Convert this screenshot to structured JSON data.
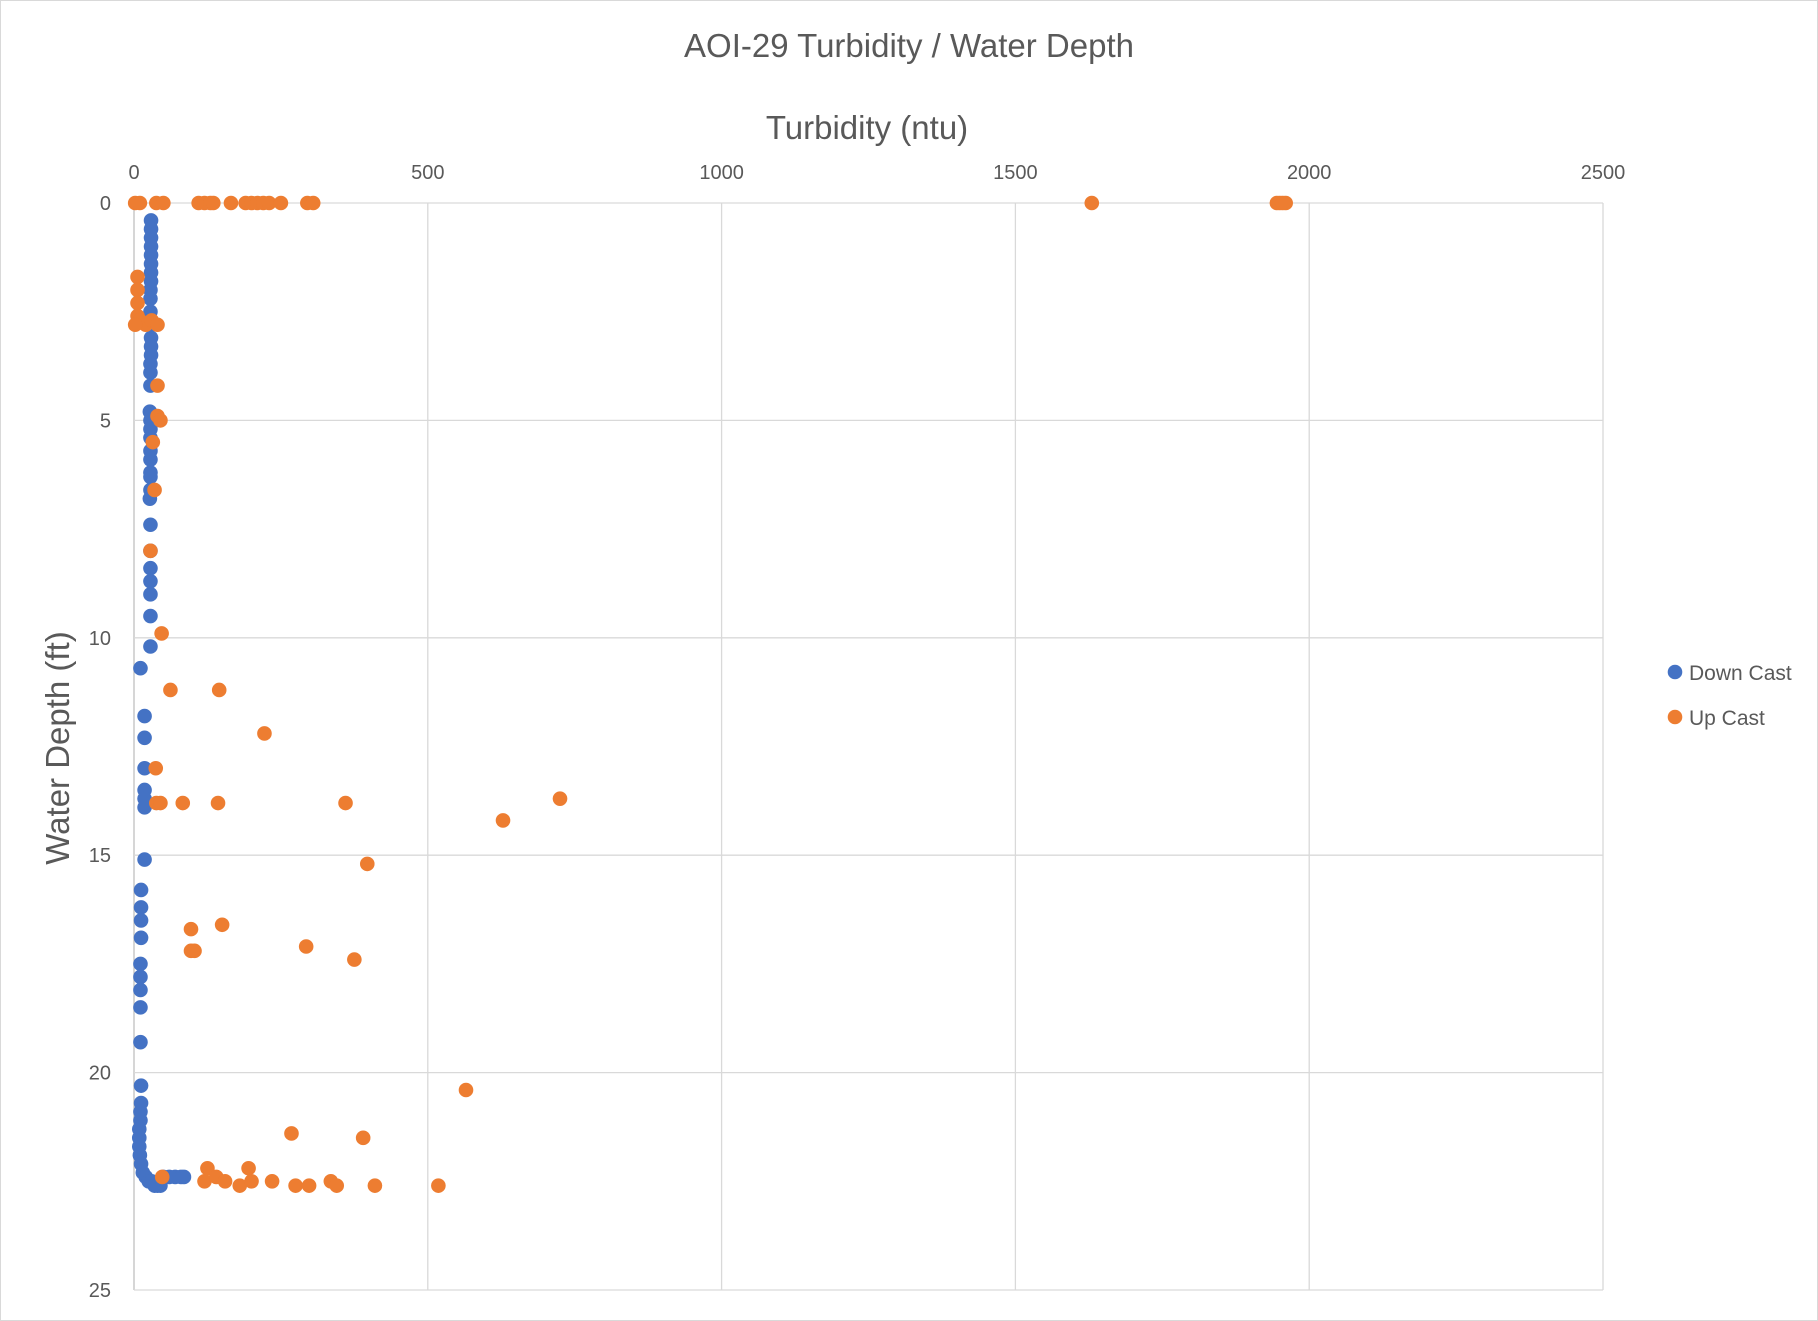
{
  "chart_data": {
    "type": "scatter",
    "title": "AOI-29 Turbidity / Water Depth",
    "xlabel": "Turbidity (ntu)",
    "ylabel": "Water Depth (ft)",
    "xlim": [
      0,
      2500
    ],
    "ylim": [
      0,
      25
    ],
    "y_inverted": true,
    "x_axis_position": "top",
    "x_ticks": [
      "0",
      "500",
      "1000",
      "1500",
      "2000",
      "2500"
    ],
    "y_ticks": [
      "0",
      "5",
      "10",
      "15",
      "20",
      "25"
    ],
    "grid": true,
    "legend_position": "right",
    "series": [
      {
        "name": "Down Cast",
        "color": "#4472C4",
        "points": [
          [
            29,
            0.4
          ],
          [
            29,
            0.6
          ],
          [
            29,
            0.8
          ],
          [
            29,
            1.0
          ],
          [
            29,
            1.2
          ],
          [
            29,
            1.4
          ],
          [
            29,
            1.6
          ],
          [
            29,
            1.8
          ],
          [
            28,
            2.0
          ],
          [
            28,
            2.2
          ],
          [
            28,
            2.5
          ],
          [
            28,
            2.8
          ],
          [
            29,
            3.1
          ],
          [
            29,
            3.3
          ],
          [
            29,
            3.5
          ],
          [
            28,
            3.7
          ],
          [
            28,
            3.9
          ],
          [
            28,
            4.2
          ],
          [
            27,
            4.8
          ],
          [
            28,
            5.0
          ],
          [
            28,
            5.2
          ],
          [
            28,
            5.4
          ],
          [
            28,
            5.7
          ],
          [
            28,
            5.9
          ],
          [
            28,
            6.2
          ],
          [
            28,
            6.3
          ],
          [
            28,
            6.6
          ],
          [
            27,
            6.8
          ],
          [
            28,
            7.4
          ],
          [
            28,
            8.0
          ],
          [
            28,
            8.4
          ],
          [
            28,
            8.7
          ],
          [
            28,
            9.0
          ],
          [
            28,
            9.5
          ],
          [
            28,
            10.2
          ],
          [
            11,
            10.7
          ],
          [
            18,
            11.8
          ],
          [
            18,
            12.3
          ],
          [
            18,
            13.0
          ],
          [
            18,
            13.5
          ],
          [
            18,
            13.7
          ],
          [
            18,
            13.9
          ],
          [
            18,
            15.1
          ],
          [
            12,
            15.8
          ],
          [
            12,
            16.2
          ],
          [
            12,
            16.5
          ],
          [
            12,
            16.9
          ],
          [
            11,
            17.5
          ],
          [
            11,
            17.8
          ],
          [
            11,
            18.1
          ],
          [
            11,
            18.5
          ],
          [
            11,
            19.3
          ],
          [
            12,
            20.3
          ],
          [
            12,
            20.7
          ],
          [
            11,
            20.9
          ],
          [
            11,
            21.1
          ],
          [
            9,
            21.3
          ],
          [
            9,
            21.5
          ],
          [
            9,
            21.7
          ],
          [
            10,
            21.9
          ],
          [
            12,
            22.1
          ],
          [
            15,
            22.3
          ],
          [
            20,
            22.4
          ],
          [
            25,
            22.5
          ],
          [
            30,
            22.5
          ],
          [
            35,
            22.6
          ],
          [
            40,
            22.6
          ],
          [
            45,
            22.6
          ],
          [
            50,
            22.4
          ],
          [
            60,
            22.4
          ],
          [
            70,
            22.4
          ],
          [
            80,
            22.4
          ],
          [
            85,
            22.4
          ]
        ]
      },
      {
        "name": "Up Cast",
        "color": "#ED7D31",
        "points": [
          [
            2,
            0
          ],
          [
            10,
            0
          ],
          [
            38,
            0
          ],
          [
            50,
            0
          ],
          [
            110,
            0
          ],
          [
            120,
            0
          ],
          [
            130,
            0
          ],
          [
            135,
            0
          ],
          [
            165,
            0
          ],
          [
            190,
            0
          ],
          [
            200,
            0
          ],
          [
            210,
            0
          ],
          [
            220,
            0
          ],
          [
            230,
            0
          ],
          [
            250,
            0
          ],
          [
            295,
            0
          ],
          [
            305,
            0
          ],
          [
            1630,
            0
          ],
          [
            1945,
            0
          ],
          [
            1950,
            0
          ],
          [
            1955,
            0
          ],
          [
            1960,
            0
          ],
          [
            6,
            1.7
          ],
          [
            6,
            2.0
          ],
          [
            6,
            2.3
          ],
          [
            6,
            2.6
          ],
          [
            10,
            2.7
          ],
          [
            20,
            2.8
          ],
          [
            30,
            2.7
          ],
          [
            40,
            2.8
          ],
          [
            2,
            2.8
          ],
          [
            40,
            4.2
          ],
          [
            40,
            4.9
          ],
          [
            45,
            5.0
          ],
          [
            32,
            5.5
          ],
          [
            35,
            6.6
          ],
          [
            28,
            8.0
          ],
          [
            47,
            9.9
          ],
          [
            62,
            11.2
          ],
          [
            145,
            11.2
          ],
          [
            222,
            12.2
          ],
          [
            37,
            13.0
          ],
          [
            38,
            13.8
          ],
          [
            45,
            13.8
          ],
          [
            83,
            13.8
          ],
          [
            143,
            13.8
          ],
          [
            360,
            13.8
          ],
          [
            725,
            13.7
          ],
          [
            628,
            14.2
          ],
          [
            397,
            15.2
          ],
          [
            97,
            16.7
          ],
          [
            150,
            16.6
          ],
          [
            97,
            17.2
          ],
          [
            103,
            17.2
          ],
          [
            293,
            17.1
          ],
          [
            375,
            17.4
          ],
          [
            565,
            20.4
          ],
          [
            268,
            21.4
          ],
          [
            390,
            21.5
          ],
          [
            125,
            22.2
          ],
          [
            195,
            22.2
          ],
          [
            48,
            22.4
          ],
          [
            120,
            22.5
          ],
          [
            140,
            22.4
          ],
          [
            155,
            22.5
          ],
          [
            180,
            22.6
          ],
          [
            200,
            22.5
          ],
          [
            235,
            22.5
          ],
          [
            275,
            22.6
          ],
          [
            298,
            22.6
          ],
          [
            335,
            22.5
          ],
          [
            345,
            22.6
          ],
          [
            410,
            22.6
          ],
          [
            518,
            22.6
          ]
        ]
      }
    ]
  }
}
